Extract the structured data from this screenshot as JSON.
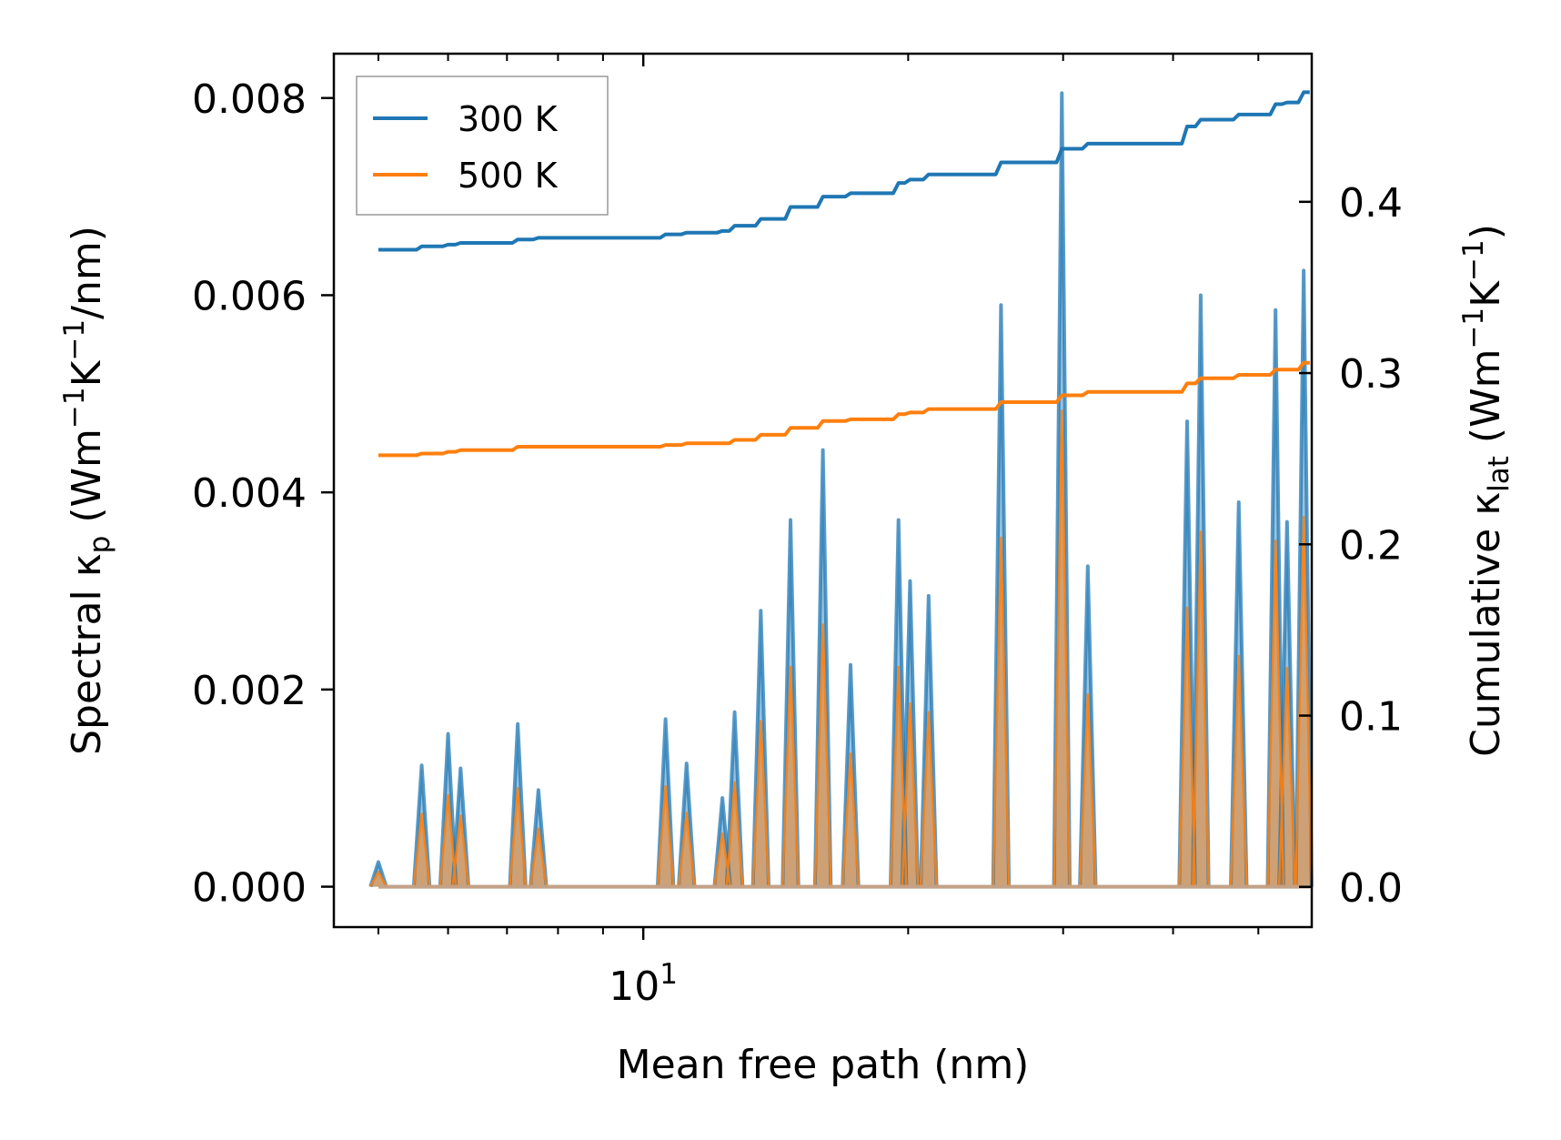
{
  "chart_data": {
    "type": "line",
    "xscale": "log",
    "xlabel": "Mean free path (nm)",
    "ylabel_left": {
      "text": "Spectral κ",
      "sub": "p",
      "units": "(Wm",
      "sup1": "−1",
      "mid": "K",
      "sup2": "−1",
      "end": "/nm)"
    },
    "ylabel_right": {
      "text": "Cumulative κ",
      "sub": "lat",
      "units": "(Wm",
      "sup1": "−1",
      "mid": "K",
      "sup2": "−1",
      "end": ")"
    },
    "xlim": [
      4.45,
      57.5
    ],
    "ylim_left": [
      -0.00041,
      0.00845
    ],
    "ylim_right": [
      -0.0235,
      0.4865
    ],
    "x_major_tick": {
      "value": 10,
      "base": "10",
      "exp": "1"
    },
    "left_ticks": [
      {
        "value": 0,
        "label": "0.000"
      },
      {
        "value": 0.002,
        "label": "0.002"
      },
      {
        "value": 0.004,
        "label": "0.004"
      },
      {
        "value": 0.006,
        "label": "0.006"
      },
      {
        "value": 0.008,
        "label": "0.008"
      }
    ],
    "right_ticks": [
      {
        "value": 0,
        "label": "0.0"
      },
      {
        "value": 0.1,
        "label": "0.1"
      },
      {
        "value": 0.2,
        "label": "0.2"
      },
      {
        "value": 0.3,
        "label": "0.3"
      },
      {
        "value": 0.4,
        "label": "0.4"
      }
    ],
    "legend": {
      "position": "top-left",
      "entries": [
        "300 K",
        "500 K"
      ]
    },
    "series": [
      {
        "name": "300 K",
        "color": "#1f77b4",
        "spectral_peaks": [
          [
            5.0,
            0.00025
          ],
          [
            5.6,
            0.00123
          ],
          [
            6.0,
            0.00155
          ],
          [
            6.2,
            0.0012
          ],
          [
            7.2,
            0.00165
          ],
          [
            7.6,
            0.00098
          ],
          [
            10.6,
            0.0017
          ],
          [
            11.2,
            0.00125
          ],
          [
            12.3,
            0.0009
          ],
          [
            12.7,
            0.00177
          ],
          [
            13.6,
            0.0028
          ],
          [
            14.7,
            0.00372
          ],
          [
            16.0,
            0.00443
          ],
          [
            17.2,
            0.00225
          ],
          [
            19.5,
            0.00372
          ],
          [
            20.1,
            0.0031
          ],
          [
            21.1,
            0.00295
          ],
          [
            25.5,
            0.0059
          ],
          [
            29.9,
            0.00805
          ],
          [
            32.0,
            0.00325
          ],
          [
            41.5,
            0.00472
          ],
          [
            43.0,
            0.006
          ],
          [
            47.5,
            0.0039
          ],
          [
            52.3,
            0.00585
          ],
          [
            53.9,
            0.0037
          ],
          [
            56.3,
            0.00625
          ]
        ],
        "cumulative": [
          [
            5.0,
            0.372
          ],
          [
            5.4,
            0.372
          ],
          [
            5.6,
            0.374
          ],
          [
            6.0,
            0.375
          ],
          [
            6.2,
            0.376
          ],
          [
            7.2,
            0.378
          ],
          [
            7.6,
            0.379
          ],
          [
            10.6,
            0.381
          ],
          [
            11.2,
            0.382
          ],
          [
            12.3,
            0.383
          ],
          [
            12.7,
            0.386
          ],
          [
            13.6,
            0.39
          ],
          [
            14.7,
            0.397
          ],
          [
            16.0,
            0.403
          ],
          [
            17.2,
            0.405
          ],
          [
            19.5,
            0.411
          ],
          [
            20.1,
            0.413
          ],
          [
            21.1,
            0.416
          ],
          [
            25.5,
            0.423
          ],
          [
            29.9,
            0.431
          ],
          [
            32.0,
            0.434
          ],
          [
            41.5,
            0.444
          ],
          [
            43.0,
            0.448
          ],
          [
            47.5,
            0.451
          ],
          [
            52.3,
            0.457
          ],
          [
            53.9,
            0.458
          ],
          [
            56.3,
            0.464
          ],
          [
            57.2,
            0.464
          ]
        ]
      },
      {
        "name": "500 K",
        "color": "#ff7f0e",
        "spectral_peaks": [
          [
            5.0,
            0.00015
          ],
          [
            5.6,
            0.00074
          ],
          [
            6.0,
            0.00093
          ],
          [
            6.2,
            0.00072
          ],
          [
            7.2,
            0.001
          ],
          [
            7.6,
            0.00059
          ],
          [
            10.6,
            0.00102
          ],
          [
            11.2,
            0.00075
          ],
          [
            12.3,
            0.00054
          ],
          [
            12.7,
            0.00106
          ],
          [
            13.6,
            0.00168
          ],
          [
            14.7,
            0.00223
          ],
          [
            16.0,
            0.00266
          ],
          [
            17.2,
            0.00135
          ],
          [
            19.5,
            0.00223
          ],
          [
            20.1,
            0.00186
          ],
          [
            21.1,
            0.00177
          ],
          [
            25.5,
            0.00354
          ],
          [
            29.9,
            0.00483
          ],
          [
            32.0,
            0.00195
          ],
          [
            41.5,
            0.00283
          ],
          [
            43.0,
            0.0036
          ],
          [
            47.5,
            0.00234
          ],
          [
            52.3,
            0.00351
          ],
          [
            53.9,
            0.00222
          ],
          [
            56.3,
            0.00375
          ]
        ],
        "cumulative": [
          [
            5.0,
            0.252
          ],
          [
            5.4,
            0.252
          ],
          [
            5.6,
            0.253
          ],
          [
            6.0,
            0.254
          ],
          [
            6.2,
            0.255
          ],
          [
            7.2,
            0.257
          ],
          [
            7.6,
            0.257
          ],
          [
            10.6,
            0.258
          ],
          [
            11.2,
            0.259
          ],
          [
            12.3,
            0.259
          ],
          [
            12.7,
            0.261
          ],
          [
            13.6,
            0.264
          ],
          [
            14.7,
            0.268
          ],
          [
            16.0,
            0.272
          ],
          [
            17.2,
            0.273
          ],
          [
            19.5,
            0.276
          ],
          [
            20.1,
            0.277
          ],
          [
            21.1,
            0.279
          ],
          [
            25.5,
            0.283
          ],
          [
            29.9,
            0.287
          ],
          [
            32.0,
            0.289
          ],
          [
            41.5,
            0.294
          ],
          [
            43.0,
            0.297
          ],
          [
            47.5,
            0.299
          ],
          [
            52.3,
            0.302
          ],
          [
            53.9,
            0.302
          ],
          [
            56.3,
            0.306
          ],
          [
            57.2,
            0.306
          ]
        ]
      }
    ]
  }
}
